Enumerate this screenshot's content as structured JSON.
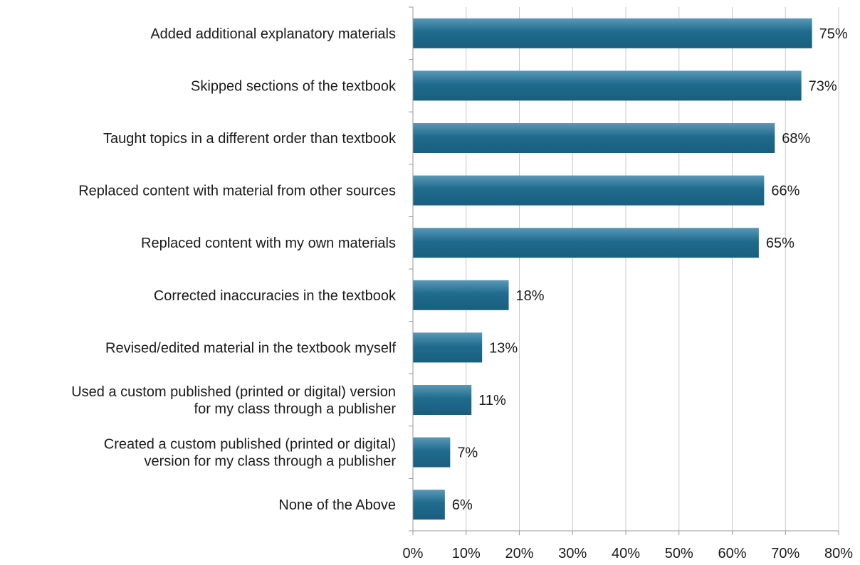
{
  "chart_data": {
    "type": "bar",
    "orientation": "horizontal",
    "categories": [
      [
        "Added additional explanatory materials"
      ],
      [
        "Skipped sections of the textbook"
      ],
      [
        "Taught topics in a different order than textbook"
      ],
      [
        "Replaced content with material from other sources"
      ],
      [
        "Replaced content with my own materials"
      ],
      [
        "Corrected inaccuracies in the textbook"
      ],
      [
        "Revised/edited material in the textbook myself"
      ],
      [
        "Used a custom published (printed or digital) version",
        "for my class through a publisher"
      ],
      [
        "Created a custom published (printed or digital)",
        "version for my class through a publisher"
      ],
      [
        "None of the Above"
      ]
    ],
    "values": [
      75,
      73,
      68,
      66,
      65,
      18,
      13,
      11,
      7,
      6
    ],
    "value_labels": [
      "75%",
      "73%",
      "68%",
      "66%",
      "65%",
      "18%",
      "13%",
      "11%",
      "7%",
      "6%"
    ],
    "xlim": [
      0,
      80
    ],
    "xticks": [
      0,
      10,
      20,
      30,
      40,
      50,
      60,
      70,
      80
    ],
    "xtick_labels": [
      "0%",
      "10%",
      "20%",
      "30%",
      "40%",
      "50%",
      "60%",
      "70%",
      "80%"
    ],
    "grid": "vertical",
    "bar_color": "#1f6b8e",
    "bar_color_light": "#5a98b6",
    "title": "",
    "xlabel": "",
    "ylabel": ""
  }
}
